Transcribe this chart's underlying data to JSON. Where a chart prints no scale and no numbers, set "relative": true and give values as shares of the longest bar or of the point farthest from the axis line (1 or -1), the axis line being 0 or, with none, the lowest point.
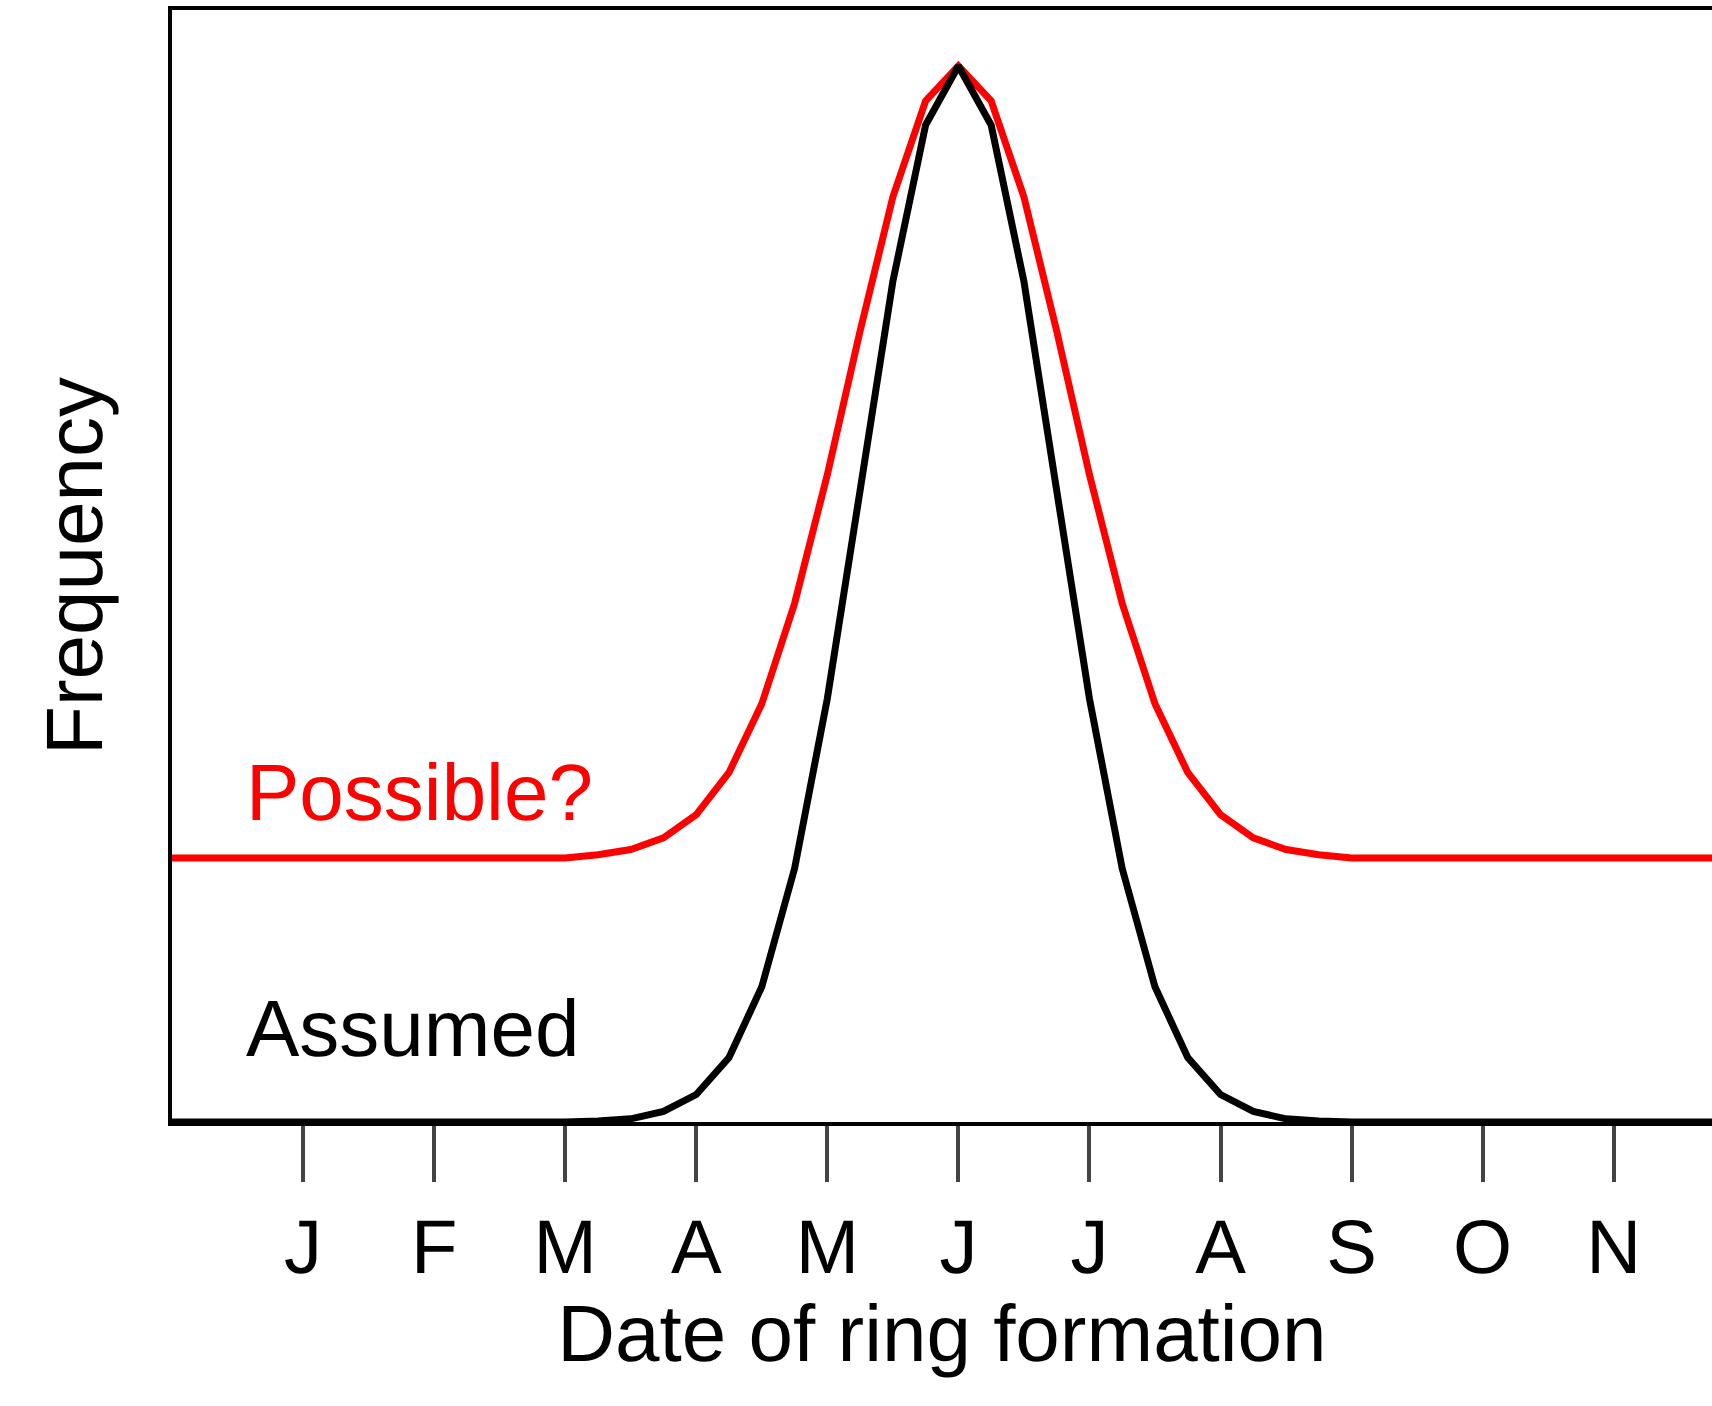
{
  "chart_data": {
    "type": "line",
    "relative": true,
    "xlabel": "Date of ring formation",
    "ylabel": "Frequency",
    "categories": [
      null,
      null,
      null,
      null,
      "J",
      null,
      null,
      null,
      "F",
      null,
      null,
      null,
      "M",
      null,
      null,
      null,
      "A",
      null,
      null,
      null,
      "M",
      null,
      null,
      null,
      "J",
      null,
      null,
      null,
      "J",
      null,
      null,
      null,
      "A",
      null,
      null,
      null,
      "S",
      null,
      null,
      null,
      "O",
      null,
      null,
      null,
      "N",
      null,
      null,
      null
    ],
    "series": [
      {
        "name": "Possible?",
        "color": "#ff0000",
        "values": [
          0.25,
          0.25,
          0.25,
          0.25,
          0.25,
          0.25,
          0.25,
          0.25,
          0.25,
          0.25,
          0.25,
          0.25,
          0.25,
          0.253,
          0.258,
          0.269,
          0.291,
          0.331,
          0.396,
          0.491,
          0.613,
          0.749,
          0.876,
          0.967,
          1,
          0.967,
          0.876,
          0.749,
          0.613,
          0.491,
          0.396,
          0.331,
          0.291,
          0.269,
          0.258,
          0.253,
          0.25,
          0.25,
          0.25,
          0.25,
          0.25,
          0.25,
          0.25,
          0.25,
          0.25,
          0.25,
          0.25,
          0.25
        ]
      },
      {
        "name": "Assumed",
        "color": "#000000",
        "values": [
          0,
          0,
          0,
          0,
          0,
          0,
          0,
          0,
          0,
          0,
          0,
          0,
          0,
          0.001,
          0.003,
          0.01,
          0.026,
          0.061,
          0.128,
          0.24,
          0.401,
          0.598,
          0.796,
          0.944,
          1,
          0.944,
          0.796,
          0.598,
          0.401,
          0.24,
          0.128,
          0.061,
          0.026,
          0.01,
          0.003,
          0.001,
          0,
          0,
          0,
          0,
          0,
          0,
          0,
          0,
          0,
          0,
          0,
          0
        ]
      }
    ],
    "legend": false,
    "marker": "none",
    "line_style": "solid"
  }
}
